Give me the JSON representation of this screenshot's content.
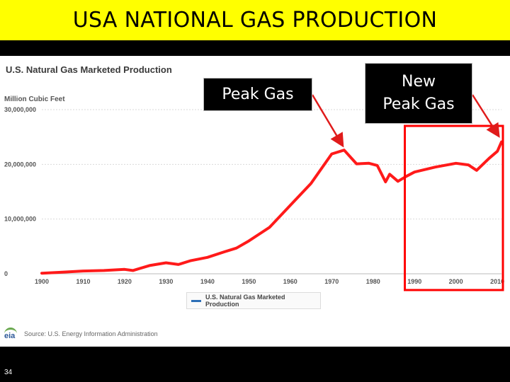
{
  "slide": {
    "title": "USA NATIONAL GAS PRODUCTION",
    "number": "34"
  },
  "chart": {
    "header": "U.S. Natural Gas Marketed Production",
    "unit": "Million Cubic Feet",
    "legend_label": "U.S. Natural Gas Marketed Production",
    "source": "Source: U.S. Energy Information Administration",
    "logo_text": "eia"
  },
  "callouts": {
    "peak": "Peak Gas",
    "new_peak_line1": "New",
    "new_peak_line2": "Peak Gas"
  },
  "colors": {
    "title_bg": "#ffff00",
    "series": "#ff1a1a",
    "highlight_box": "#ff0000",
    "arrow": "#e01b1b"
  },
  "chart_data": {
    "type": "line",
    "title": "U.S. Natural Gas Marketed Production",
    "ylabel": "Million Cubic Feet",
    "xlim": [
      1900,
      2011
    ],
    "ylim": [
      0,
      30000000
    ],
    "y_ticks": [
      0,
      10000000,
      20000000,
      30000000
    ],
    "y_tick_labels": [
      "0",
      "10,000,000",
      "20,000,000",
      "30,000,000"
    ],
    "x_ticks": [
      1900,
      1910,
      1920,
      1930,
      1940,
      1950,
      1960,
      1970,
      1980,
      1990,
      2000,
      2010
    ],
    "x_tick_labels": [
      "1900",
      "1910",
      "1920",
      "1930",
      "1940",
      "1950",
      "1960",
      "1970",
      "1980",
      "1990",
      "2000",
      "2010"
    ],
    "grid": "horizontal",
    "legend_position": "bottom",
    "series": [
      {
        "name": "U.S. Natural Gas Marketed Production",
        "x": [
          1900,
          1905,
          1910,
          1915,
          1920,
          1922,
          1926,
          1930,
          1933,
          1936,
          1940,
          1944,
          1947,
          1950,
          1953,
          1955,
          1960,
          1965,
          1970,
          1973,
          1976,
          1979,
          1981,
          1983,
          1984,
          1986,
          1988,
          1990,
          1995,
          2000,
          2003,
          2005,
          2008,
          2010,
          2011
        ],
        "values": [
          100000,
          300000,
          500000,
          600000,
          800000,
          600000,
          1500000,
          2000000,
          1700000,
          2400000,
          3000000,
          4000000,
          4700000,
          6000000,
          7500000,
          8500000,
          12500000,
          16500000,
          21900000,
          22600000,
          20100000,
          20200000,
          19800000,
          16800000,
          18200000,
          16900000,
          17800000,
          18600000,
          19500000,
          20200000,
          19900000,
          18900000,
          21100000,
          22400000,
          24100000
        ]
      }
    ],
    "annotations": [
      {
        "text": "Peak Gas",
        "x": 1973,
        "y": 22600000
      },
      {
        "text": "New Peak Gas",
        "x": 2011,
        "y": 24100000
      }
    ],
    "highlight_range_x": [
      1988,
      2011
    ]
  }
}
